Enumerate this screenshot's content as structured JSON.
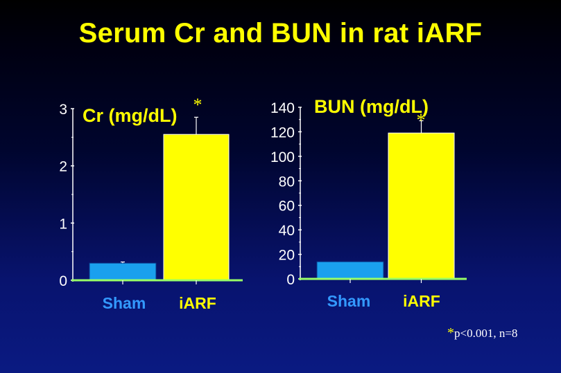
{
  "title": "Serum Cr and BUN in rat iARF",
  "colors": {
    "sham": "#1aa0ee",
    "iarf": "#ffff00",
    "label_sham": "#3399ff",
    "label_iarf": "#ffff00",
    "axis": "#ffffff",
    "baseline": "#99ff66"
  },
  "chart_data": [
    {
      "type": "bar",
      "title": "Cr (mg/dL)",
      "categories": [
        "Sham",
        "iARF"
      ],
      "values": [
        0.3,
        2.55
      ],
      "errors": [
        0.02,
        0.3
      ],
      "significance": [
        "",
        "*"
      ],
      "ylim": [
        0,
        3
      ],
      "yticks": [
        "0",
        "1",
        "2",
        "3"
      ],
      "ytick_values": [
        0,
        1,
        2,
        3
      ]
    },
    {
      "type": "bar",
      "title": "BUN (mg/dL)",
      "categories": [
        "Sham",
        "iARF"
      ],
      "values": [
        14,
        119
      ],
      "errors": [
        0,
        10
      ],
      "significance": [
        "",
        "*"
      ],
      "ylim": [
        0,
        140
      ],
      "yticks": [
        "0",
        "20",
        "40",
        "60",
        "80",
        "100",
        "120",
        "140"
      ],
      "ytick_values": [
        0,
        20,
        40,
        60,
        80,
        100,
        120,
        140
      ]
    }
  ],
  "footnote": {
    "star": "*",
    "text": "p<0.001, n=8"
  }
}
